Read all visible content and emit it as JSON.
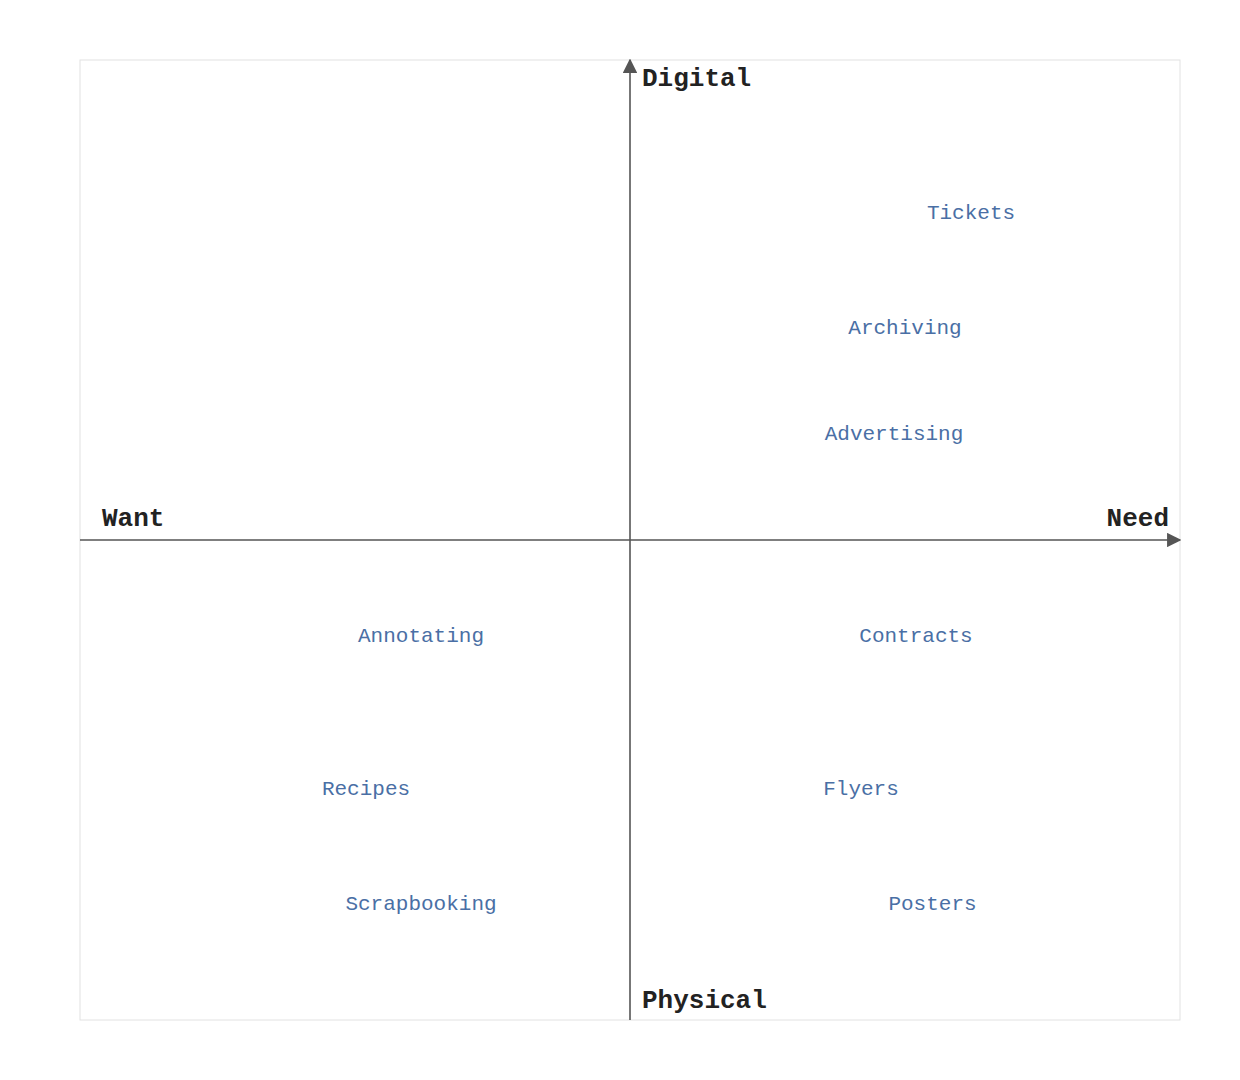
{
  "chart_data": {
    "type": "quadrant",
    "labels": [
      "Tickets",
      "Archiving",
      "Advertising",
      "Contracts",
      "Flyers",
      "Posters",
      "Annotating",
      "Recipes",
      "Scrapbooking"
    ],
    "x": [
      0.62,
      0.5,
      0.48,
      0.52,
      0.42,
      0.55,
      -0.38,
      -0.48,
      -0.38
    ],
    "values": [
      0.68,
      0.44,
      0.22,
      -0.2,
      -0.52,
      -0.76,
      -0.2,
      -0.52,
      -0.76
    ],
    "annotations": [
      {
        "text": "Want",
        "x": -0.96,
        "y": 0
      },
      {
        "text": "Need",
        "x": 0.98,
        "y": 0
      },
      {
        "text": "Digital",
        "x": 0,
        "y": 0.96
      },
      {
        "text": "Physical",
        "x": 0,
        "y": -0.96
      }
    ],
    "xlim": [
      -1.0,
      1.0
    ],
    "ylim": [
      -1.0,
      1.0
    ],
    "tick_labels": false,
    "grid": false
  }
}
